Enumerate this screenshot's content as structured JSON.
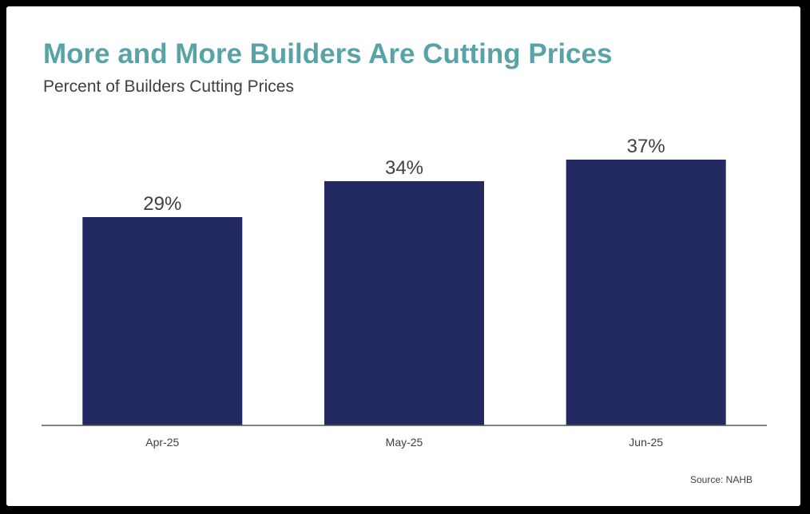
{
  "chart_data": {
    "type": "bar",
    "title": "More and More Builders Are Cutting Prices",
    "subtitle": "Percent of Builders Cutting Prices",
    "categories": [
      "Apr-25",
      "May-25",
      "Jun-25"
    ],
    "values": [
      29,
      34,
      37
    ],
    "data_labels": [
      "29%",
      "34%",
      "37%"
    ],
    "xlabel": "",
    "ylabel": "",
    "ylim": [
      0,
      45
    ],
    "grid": false,
    "legend": "none",
    "source": "Source: NAHB"
  },
  "colors": {
    "title": "#57a3a6",
    "bar": "#232961",
    "axis": "#595959",
    "text": "#404040",
    "frame": "#000000"
  }
}
